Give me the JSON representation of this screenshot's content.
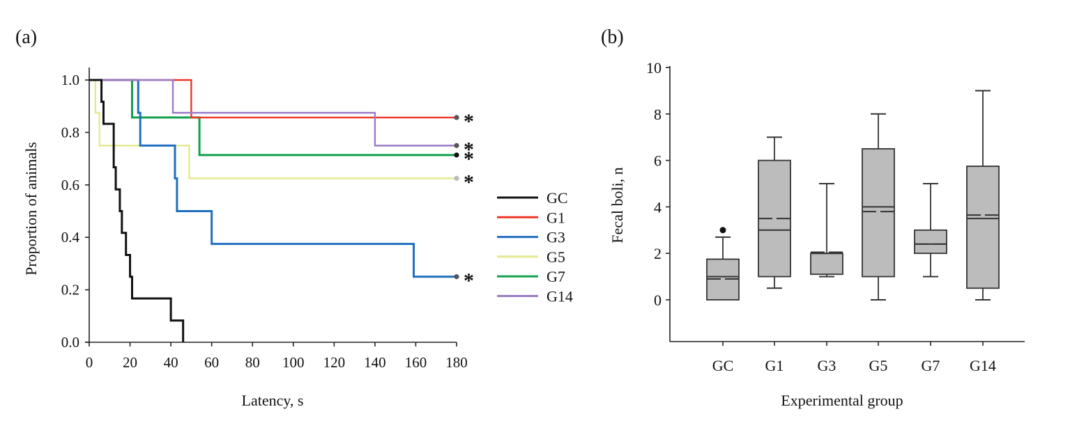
{
  "chart_data": [
    {
      "panel_label": "(a)",
      "type": "line",
      "subtype": "kaplan-meier step",
      "title": "",
      "xlabel": "Latency, s",
      "ylabel": "Proportion of animals",
      "xlim": [
        0,
        180
      ],
      "ylim": [
        0,
        1.0
      ],
      "xticks": [
        "0",
        "20",
        "40",
        "60",
        "80",
        "100",
        "120",
        "140",
        "160",
        "180"
      ],
      "yticks": [
        "0.0",
        "0.2",
        "0.4",
        "0.6",
        "0.8",
        "1.0"
      ],
      "grid": false,
      "legend_position": "right",
      "series": [
        {
          "name": "GC",
          "color": "#111111",
          "steps": [
            [
              0,
              1.0
            ],
            [
              6,
              0.917
            ],
            [
              7,
              0.833
            ],
            [
              12,
              0.667
            ],
            [
              13,
              0.583
            ],
            [
              15,
              0.5
            ],
            [
              16,
              0.417
            ],
            [
              18,
              0.333
            ],
            [
              20,
              0.25
            ],
            [
              21,
              0.167
            ],
            [
              40,
              0.083
            ],
            [
              46,
              0.0
            ]
          ],
          "censor_marker": false,
          "significance": ""
        },
        {
          "name": "G1",
          "color": "#ee3524",
          "steps": [
            [
              0,
              1.0
            ],
            [
              50,
              0.857
            ],
            [
              180,
              0.857
            ]
          ],
          "censor_marker": true,
          "significance": "*"
        },
        {
          "name": "G3",
          "color": "#1f6fc0",
          "steps": [
            [
              0,
              1.0
            ],
            [
              24,
              0.875
            ],
            [
              25,
              0.75
            ],
            [
              42,
              0.625
            ],
            [
              43,
              0.5
            ],
            [
              60,
              0.375
            ],
            [
              159,
              0.25
            ],
            [
              180,
              0.25
            ]
          ],
          "censor_marker": true,
          "significance": "*"
        },
        {
          "name": "G5",
          "color": "#e3ea8e",
          "steps": [
            [
              0,
              1.0
            ],
            [
              3,
              0.875
            ],
            [
              5,
              0.75
            ],
            [
              49,
              0.625
            ],
            [
              180,
              0.625
            ]
          ],
          "censor_marker": true,
          "significance": "*"
        },
        {
          "name": "G7",
          "color": "#11a04a",
          "steps": [
            [
              0,
              1.0
            ],
            [
              21,
              0.857
            ],
            [
              54,
              0.714
            ],
            [
              180,
              0.714
            ]
          ],
          "censor_marker": true,
          "significance": "*"
        },
        {
          "name": "G14",
          "color": "#9b7cc6",
          "steps": [
            [
              0,
              1.0
            ],
            [
              41,
              0.875
            ],
            [
              140,
              0.75
            ],
            [
              180,
              0.75
            ]
          ],
          "censor_marker": true,
          "significance": "*"
        }
      ]
    },
    {
      "panel_label": "(b)",
      "type": "box",
      "title": "",
      "xlabel": "Experimental group",
      "ylabel": "Fecal boli, n",
      "ylim": [
        -1.8,
        10
      ],
      "yticks": [
        "0",
        "2",
        "4",
        "6",
        "8",
        "10"
      ],
      "categories": [
        "GC",
        "G1",
        "G3",
        "G5",
        "G7",
        "G14"
      ],
      "box_color": "#bcbcbc",
      "boxes": [
        {
          "group": "GC",
          "whisker_low": 0,
          "q1": 0,
          "median": 1.0,
          "mean": 0.9,
          "q3": 1.75,
          "whisker_high": 2.7,
          "outliers": [
            3.0
          ]
        },
        {
          "group": "G1",
          "whisker_low": 0.5,
          "q1": 1.0,
          "median": 3.0,
          "mean": 3.5,
          "q3": 6.0,
          "whisker_high": 7.0,
          "outliers": []
        },
        {
          "group": "G3",
          "whisker_low": 1.0,
          "q1": 1.1,
          "median": 2.0,
          "mean": 2.05,
          "q3": 2.0,
          "whisker_high": 5.0,
          "outliers": []
        },
        {
          "group": "G5",
          "whisker_low": 0,
          "q1": 1.0,
          "median": 4.0,
          "mean": 3.8,
          "q3": 6.5,
          "whisker_high": 8.0,
          "outliers": []
        },
        {
          "group": "G7",
          "whisker_low": 1.0,
          "q1": 2.0,
          "median": 2.4,
          "mean": 2.4,
          "q3": 3.0,
          "whisker_high": 5.0,
          "outliers": []
        },
        {
          "group": "G14",
          "whisker_low": 0,
          "q1": 0.5,
          "median": 3.5,
          "mean": 3.65,
          "q3": 5.75,
          "whisker_high": 9.0,
          "outliers": []
        }
      ]
    }
  ]
}
